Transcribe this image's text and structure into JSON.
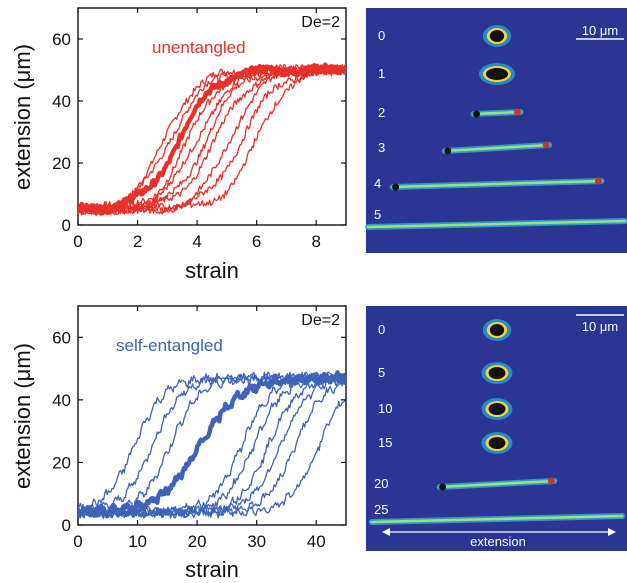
{
  "chart_data": [
    {
      "type": "line",
      "panel": "top-left",
      "xlabel": "strain",
      "ylabel": "extension (μm)",
      "xlim": [
        0,
        9
      ],
      "ylim": [
        0,
        70
      ],
      "x_ticks": [
        "0",
        "2",
        "4",
        "6",
        "8"
      ],
      "y_ticks": [
        "0",
        "20",
        "40",
        "60"
      ],
      "annotation": "De=2",
      "series_label": "unentangled",
      "color": "#e8302a",
      "plateau": 50,
      "start": 5,
      "series": [
        {
          "midpoint": 2.9,
          "width": 0.55,
          "emphasis": false
        },
        {
          "midpoint": 3.1,
          "width": 0.6,
          "emphasis": false
        },
        {
          "midpoint": 3.4,
          "width": 0.6,
          "emphasis": true
        },
        {
          "midpoint": 3.7,
          "width": 0.55,
          "emphasis": false
        },
        {
          "midpoint": 4.0,
          "width": 0.6,
          "emphasis": false
        },
        {
          "midpoint": 4.3,
          "width": 0.55,
          "emphasis": false
        },
        {
          "midpoint": 4.6,
          "width": 0.6,
          "emphasis": false
        },
        {
          "midpoint": 5.1,
          "width": 0.55,
          "emphasis": false
        },
        {
          "midpoint": 5.5,
          "width": 0.6,
          "emphasis": false
        },
        {
          "midpoint": 6.0,
          "width": 0.55,
          "emphasis": false
        }
      ]
    },
    {
      "type": "line",
      "panel": "bottom-left",
      "xlabel": "strain",
      "ylabel": "extension (μm)",
      "xlim": [
        0,
        45
      ],
      "ylim": [
        0,
        70
      ],
      "x_ticks": [
        "0",
        "10",
        "20",
        "30",
        "40"
      ],
      "y_ticks": [
        "0",
        "20",
        "40",
        "60"
      ],
      "annotation": "De=2",
      "series_label": "self-entangled",
      "color": "#3f63b8",
      "plateau": 47,
      "start": 4,
      "series": [
        {
          "midpoint": 9.5,
          "width": 0.5,
          "emphasis": false
        },
        {
          "midpoint": 12.5,
          "width": 0.5,
          "emphasis": false
        },
        {
          "midpoint": 15.5,
          "width": 0.5,
          "emphasis": false
        },
        {
          "midpoint": 20.5,
          "width": 0.7,
          "emphasis": true
        },
        {
          "midpoint": 27.5,
          "width": 0.5,
          "emphasis": false
        },
        {
          "midpoint": 29.5,
          "width": 0.5,
          "emphasis": false
        },
        {
          "midpoint": 32.0,
          "width": 0.5,
          "emphasis": false
        },
        {
          "midpoint": 34.0,
          "width": 0.5,
          "emphasis": false
        },
        {
          "midpoint": 36.5,
          "width": 0.5,
          "emphasis": false
        },
        {
          "midpoint": 40.5,
          "width": 0.5,
          "emphasis": false
        }
      ]
    }
  ],
  "images": [
    {
      "panel": "top-right",
      "scale_bar": "10 μm",
      "background": "#2b3593",
      "frames": [
        {
          "label": "0",
          "extension_fraction": 0.07
        },
        {
          "label": "1",
          "extension_fraction": 0.1
        },
        {
          "label": "2",
          "extension_fraction": 0.18
        },
        {
          "label": "3",
          "extension_fraction": 0.4
        },
        {
          "label": "4",
          "extension_fraction": 0.8
        },
        {
          "label": "5",
          "extension_fraction": 1.0
        }
      ]
    },
    {
      "panel": "bottom-right",
      "scale_bar": "10 μm",
      "background": "#2b3593",
      "axis_label": "extension",
      "frames": [
        {
          "label": "0",
          "extension_fraction": 0.07
        },
        {
          "label": "5",
          "extension_fraction": 0.08
        },
        {
          "label": "10",
          "extension_fraction": 0.08
        },
        {
          "label": "15",
          "extension_fraction": 0.08
        },
        {
          "label": "20",
          "extension_fraction": 0.44
        },
        {
          "label": "25",
          "extension_fraction": 0.96
        }
      ]
    }
  ]
}
